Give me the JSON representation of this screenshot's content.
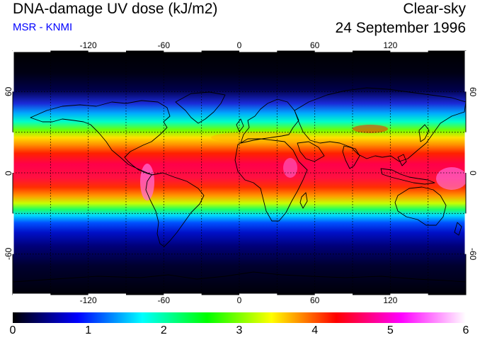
{
  "header": {
    "title": "DNA-damage UV dose (kJ/m2)",
    "source": "MSR - KNMI",
    "condition": "Clear-sky",
    "date": "24 September 1996"
  },
  "map": {
    "projection": "equirectangular",
    "lon_range": [
      -180,
      180
    ],
    "lat_range": [
      -90,
      90
    ],
    "lon_ticks": [
      -120,
      -60,
      0,
      60,
      120
    ],
    "lat_ticks": [
      60,
      0,
      -60
    ],
    "lon_tick_labels": [
      "-120",
      "-60",
      "0",
      "60",
      "120"
    ],
    "lat_tick_labels": [
      "60",
      "0",
      "-60"
    ],
    "grid_lon": [
      -150,
      -120,
      -90,
      -60,
      -30,
      0,
      30,
      60,
      90,
      120,
      150
    ],
    "grid_lat": [
      60,
      30,
      0,
      -30,
      -60
    ],
    "grid_style": "dotted",
    "coastlines": "black"
  },
  "colorbar": {
    "min": 0,
    "max": 6,
    "labels": [
      "0",
      "1",
      "2",
      "3",
      "4",
      "5",
      "6"
    ],
    "colors": [
      "#000000",
      "#0000ff",
      "#00ffff",
      "#00ff00",
      "#ffff00",
      "#ff0000",
      "#ff00ff",
      "#ffffff"
    ]
  }
}
